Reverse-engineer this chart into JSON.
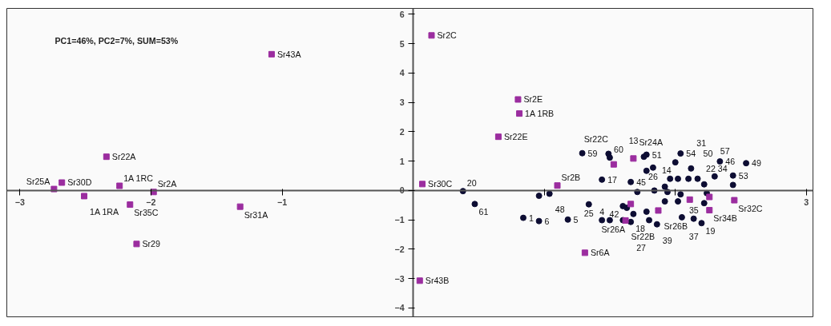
{
  "chart_data": {
    "type": "scatter",
    "xlim": [
      -3.1,
      3.05
    ],
    "ylim": [
      -4.3,
      6.2
    ],
    "xticks": [
      -3,
      -2,
      -1,
      {
        "value": 0,
        "label": null
      },
      {
        "value": 1,
        "label": null
      },
      {
        "value": 2,
        "label": null
      },
      3
    ],
    "yticks": [
      -4,
      -3,
      -2,
      -1,
      0,
      1,
      2,
      3,
      4,
      5,
      6
    ],
    "grid": false,
    "series": [
      {
        "color": "#9b2d9f",
        "marker": "square",
        "x": [
          -1.08,
          -2.34,
          -2.68,
          -2.74,
          -2.51,
          -2.24,
          -1.98,
          -2.16,
          -2.11,
          -1.32,
          0.14,
          0.8,
          0.81,
          0.65,
          0.07,
          0.05,
          1.1,
          1.31,
          1.68,
          1.53,
          1.66,
          1.87,
          1.62,
          2.45,
          2.26,
          2.11,
          2.26
        ],
        "values": [
          4.64,
          1.15,
          0.27,
          0.05,
          -0.19,
          0.16,
          -0.05,
          -0.48,
          -1.82,
          -0.55,
          5.28,
          3.1,
          2.62,
          1.83,
          0.22,
          -3.07,
          0.17,
          -2.12,
          1.09,
          0.89,
          -0.46,
          -0.68,
          -1.02,
          -0.33,
          -0.67,
          -0.31,
          -0.22
        ]
      },
      {
        "color": "#0d0d33",
        "marker": "circle",
        "x": [
          0.38,
          0.47,
          0.96,
          1.04,
          0.84,
          0.96,
          1.18,
          1.29,
          1.49,
          1.5,
          1.44,
          1.66,
          1.34,
          1.44,
          1.5,
          1.6,
          1.6,
          1.66,
          1.76,
          1.78,
          2.04,
          2.0,
          2.34,
          2.54,
          2.44,
          2.44,
          2.3,
          2.17,
          2.22,
          2.12,
          1.83,
          2.2,
          2.14,
          1.86,
          1.8,
          1.71,
          1.84,
          1.92,
          1.96,
          2.02,
          2.1,
          1.94,
          2.04,
          2.24,
          1.92,
          2.02,
          2.22,
          2.05,
          1.68,
          1.78,
          1.63,
          1.78
        ],
        "values": [
          -0.02,
          -0.46,
          -0.18,
          -0.11,
          -0.93,
          -1.04,
          -0.99,
          1.27,
          1.25,
          1.12,
          0.37,
          0.29,
          -0.47,
          -1.01,
          -1.01,
          -1.01,
          -0.53,
          -1.07,
          1.15,
          1.22,
          1.26,
          0.96,
          0.99,
          0.93,
          0.51,
          0.19,
          0.48,
          0.4,
          0.21,
          0.75,
          0.78,
          -1.11,
          -0.96,
          -1.15,
          -1.01,
          -0.05,
          0.0,
          0.13,
          0.4,
          0.4,
          0.4,
          -0.05,
          -0.13,
          -0.09,
          -0.37,
          -0.37,
          -0.43,
          -0.91,
          -0.8,
          -0.72,
          -0.59,
          0.67
        ]
      }
    ],
    "annotations": [
      "PC1=46%, PC2=7%, SUM=53%",
      {
        "text": "Sr43A",
        "x": -1.08,
        "y": 4.64
      },
      {
        "text": "Sr22A",
        "x": -2.34,
        "y": 1.15
      },
      {
        "text": "Sr30D",
        "x": -2.68,
        "y": 0.27
      },
      {
        "text": "Sr25A",
        "x": -2.74,
        "y": 0.05
      },
      {
        "text": "1A 1RA",
        "x": -2.51,
        "y": -0.19
      },
      {
        "text": "1A 1RC",
        "x": -2.24,
        "y": 0.16
      },
      {
        "text": "Sr2A",
        "x": -1.98,
        "y": -0.05
      },
      {
        "text": "Sr35C",
        "x": -2.16,
        "y": -0.48
      },
      {
        "text": "Sr29",
        "x": -2.11,
        "y": -1.82
      },
      {
        "text": "Sr31A",
        "x": -1.32,
        "y": -0.55
      },
      {
        "text": "Sr2C",
        "x": 0.14,
        "y": 5.28
      },
      {
        "text": "Sr2E",
        "x": 0.8,
        "y": 3.1
      },
      {
        "text": "1A 1RB",
        "x": 0.81,
        "y": 2.62
      },
      {
        "text": "Sr22E",
        "x": 0.65,
        "y": 1.83
      },
      {
        "text": "Sr30C",
        "x": 0.07,
        "y": 0.22
      },
      {
        "text": "Sr43B",
        "x": 0.05,
        "y": -3.07
      },
      {
        "text": "Sr2B",
        "x": 1.1,
        "y": 0.17
      },
      {
        "text": "Sr6A",
        "x": 1.31,
        "y": -2.12
      },
      {
        "text": "Sr24A",
        "x": 1.68,
        "y": 1.09
      },
      {
        "text": "Sr22C",
        "x": 1.53,
        "y": 0.89
      },
      {
        "text": "Sr26A",
        "x": 1.66,
        "y": -0.46
      },
      {
        "text": "Sr26B",
        "x": 1.87,
        "y": -0.68
      },
      {
        "text": "Sr22B",
        "x": 1.62,
        "y": -1.02
      },
      {
        "text": "Sr32C",
        "x": 2.45,
        "y": -0.33
      },
      {
        "text": "Sr34B",
        "x": 2.26,
        "y": -0.67
      },
      {
        "text": "20",
        "x": 0.38,
        "y": -0.02
      },
      {
        "text": "61",
        "x": 0.47,
        "y": -0.46
      },
      {
        "text": "48",
        "x": 1.04,
        "y": -0.11
      },
      {
        "text": "1",
        "x": 0.84,
        "y": -0.93
      },
      {
        "text": "6",
        "x": 0.96,
        "y": -1.04
      },
      {
        "text": "5",
        "x": 1.18,
        "y": -0.99
      },
      {
        "text": "59",
        "x": 1.29,
        "y": 1.27
      },
      {
        "text": "60",
        "x": 1.5,
        "y": 1.12
      },
      {
        "text": "17",
        "x": 1.44,
        "y": 0.37
      },
      {
        "text": "45",
        "x": 1.66,
        "y": 0.29
      },
      {
        "text": "25",
        "x": 1.34,
        "y": -0.47
      },
      {
        "text": "4",
        "x": 1.44,
        "y": -1.01
      },
      {
        "text": "42",
        "x": 1.6,
        "y": -0.53
      },
      {
        "text": "27",
        "x": 1.66,
        "y": -1.07
      },
      {
        "text": "13",
        "x": 1.76,
        "y": 1.15
      },
      {
        "text": "51",
        "x": 1.78,
        "y": 1.22
      },
      {
        "text": "54",
        "x": 2.04,
        "y": 1.26
      },
      {
        "text": "14",
        "x": 2.0,
        "y": 0.96
      },
      {
        "text": "46",
        "x": 2.34,
        "y": 0.99
      },
      {
        "text": "49",
        "x": 2.54,
        "y": 0.93
      },
      {
        "text": "53",
        "x": 2.44,
        "y": 0.51
      },
      {
        "text": "22 34",
        "x": 2.44,
        "y": 0.19
      },
      {
        "text": "57",
        "x": 2.3,
        "y": 0.48
      },
      {
        "text": "50",
        "x": 2.17,
        "y": 0.4
      },
      {
        "text": "35",
        "x": 2.22,
        "y": 0.21
      },
      {
        "text": "31",
        "x": 2.12,
        "y": 0.75
      },
      {
        "text": "26",
        "x": 1.83,
        "y": 0.78
      },
      {
        "text": "19",
        "x": 2.2,
        "y": -1.11
      },
      {
        "text": "37",
        "x": 2.14,
        "y": -0.96
      },
      {
        "text": "39",
        "x": 1.86,
        "y": -1.15
      },
      {
        "text": "18",
        "x": 1.8,
        "y": -1.01
      }
    ]
  }
}
